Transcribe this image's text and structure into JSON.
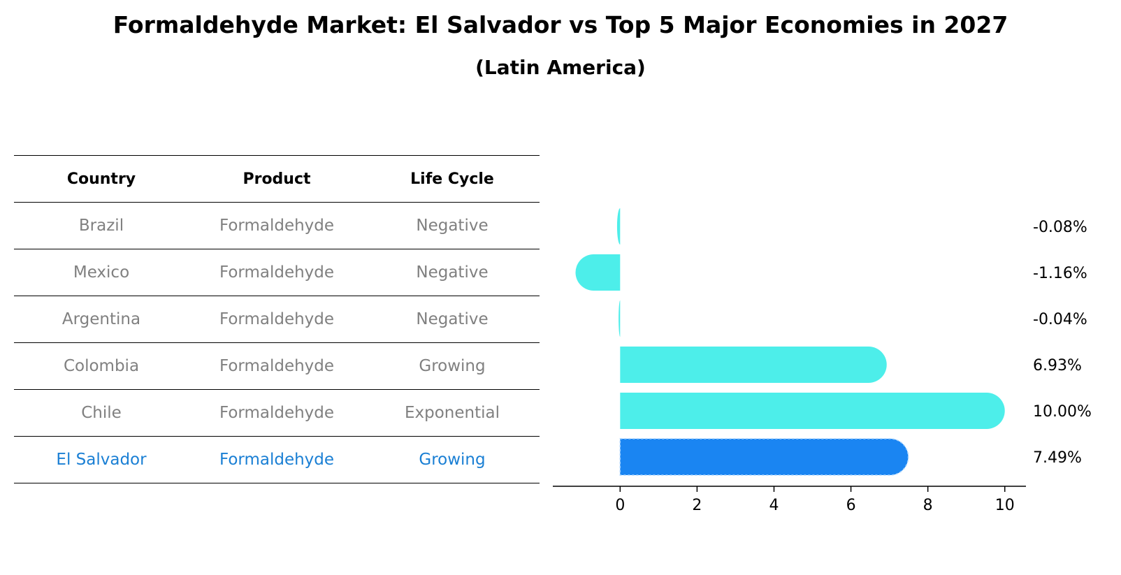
{
  "title": "Formaldehyde Market: El Salvador vs Top 5 Major Economies in 2027",
  "subtitle": "(Latin America)",
  "table": {
    "headers": [
      "Country",
      "Product",
      "Life Cycle"
    ],
    "rows": [
      [
        "Brazil",
        "Formaldehyde",
        "Negative"
      ],
      [
        "Mexico",
        "Formaldehyde",
        "Negative"
      ],
      [
        "Argentina",
        "Formaldehyde",
        "Negative"
      ],
      [
        "Colombia",
        "Formaldehyde",
        "Growing"
      ],
      [
        "Chile",
        "Formaldehyde",
        "Exponential"
      ],
      [
        "El Salvador",
        "Formaldehyde",
        "Growing"
      ]
    ],
    "highlight_row": 5
  },
  "chart_data": {
    "type": "bar",
    "orientation": "horizontal",
    "categories": [
      "Brazil",
      "Mexico",
      "Argentina",
      "Colombia",
      "Chile",
      "El Salvador"
    ],
    "values": [
      -0.08,
      -1.16,
      -0.04,
      6.93,
      10.0,
      7.49
    ],
    "value_labels": [
      "-0.08%",
      "-1.16%",
      "-0.04%",
      "6.93%",
      "10.00%",
      "7.49%"
    ],
    "xlim": [
      -1.75,
      10.55
    ],
    "xticks": [
      0,
      2,
      4,
      6,
      8,
      10
    ],
    "xlabel": "",
    "ylabel": "",
    "grid": false,
    "colors": {
      "default": "#4deeea",
      "highlight": "#1a85f2"
    },
    "highlight_index": 5
  }
}
